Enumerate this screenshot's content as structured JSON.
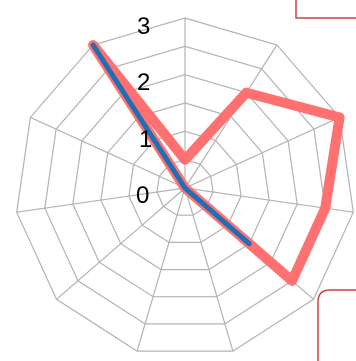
{
  "chart_data": {
    "type": "radar",
    "axes_count": 11,
    "rlim": [
      0,
      3
    ],
    "radial_ticks": [
      "0",
      "1",
      "2",
      "3"
    ],
    "grid": true,
    "series": [
      {
        "color": "#ff7070",
        "values": [
          0.5,
          2.0,
          3.0,
          2.5,
          2.5,
          0.0,
          0.0,
          0.0,
          0.0,
          0.0,
          3.0
        ]
      },
      {
        "color": "#1f6fb5",
        "values": [
          0.0,
          0.0,
          0.0,
          0.0,
          1.5,
          0.0,
          0.0,
          0.0,
          0.0,
          0.0,
          3.0
        ]
      }
    ],
    "colors": {
      "grid": "#b3b3b3",
      "legend_border": "#cc4444"
    }
  }
}
